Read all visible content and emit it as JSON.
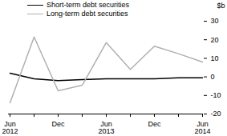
{
  "chart_data": {
    "type": "line",
    "categories": [
      "Jun\n2012",
      null,
      "Dec",
      null,
      "Jun\n2013",
      null,
      "Dec",
      null,
      "Jun\n2014"
    ],
    "series": [
      {
        "name": "Short-term debt securities",
        "color": "#000000",
        "values": [
          2,
          -1,
          -2,
          -1.5,
          -1,
          -1,
          -1,
          -0.5,
          -0.5
        ]
      },
      {
        "name": "Long-term debt securities",
        "color": "#b0b0b0",
        "values": [
          -14,
          21.5,
          -7.5,
          -4.5,
          18.5,
          4,
          16.5,
          12.5,
          8
        ]
      }
    ],
    "y_label": "$b",
    "ylim": [
      -20,
      30
    ],
    "yticks": [
      -20,
      -10,
      0,
      10,
      20,
      30
    ],
    "legend": "top-left",
    "grid": false
  }
}
